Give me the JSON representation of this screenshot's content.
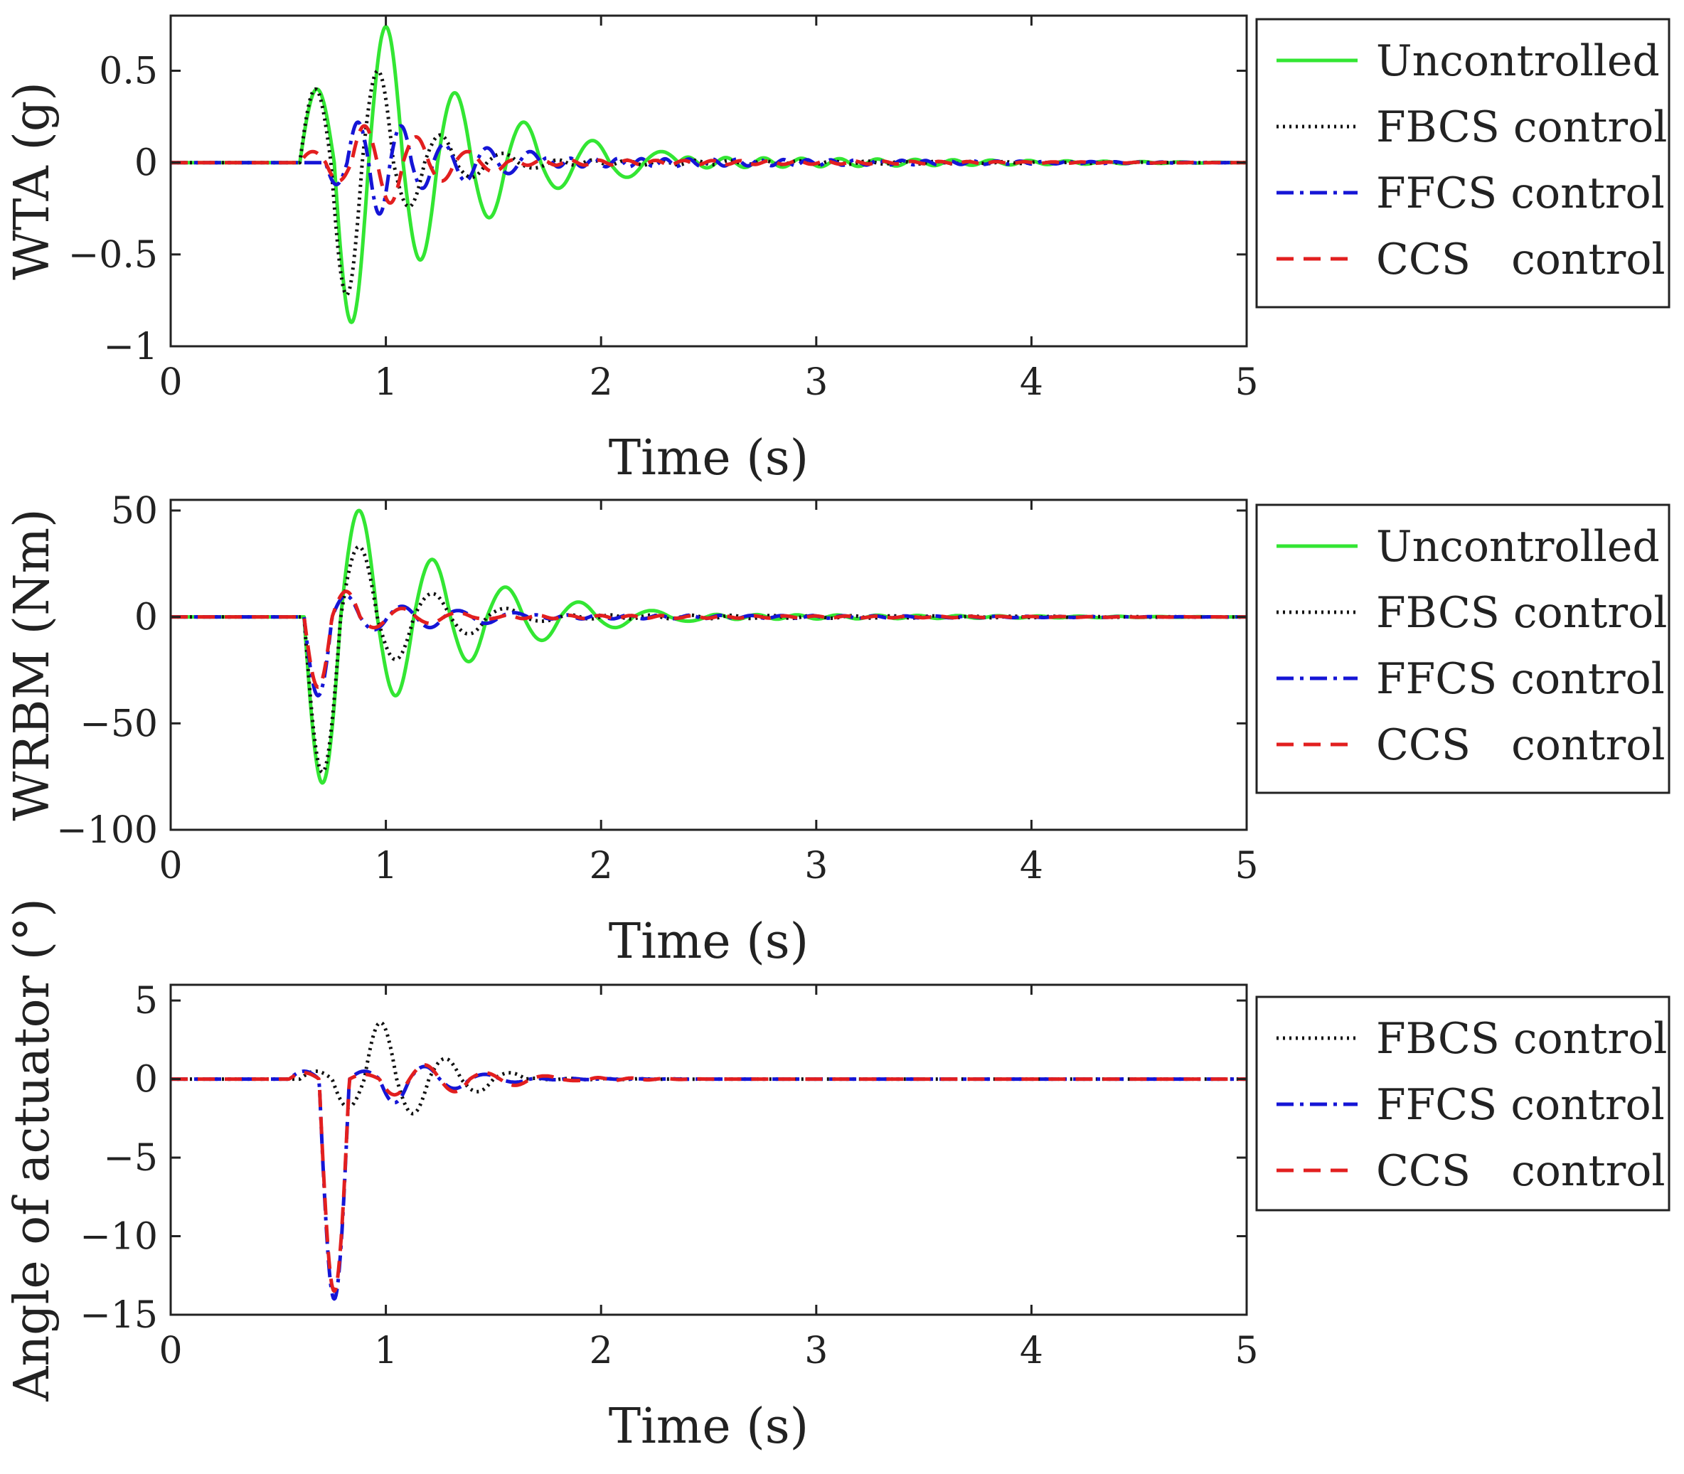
{
  "chart_data": [
    {
      "type": "line",
      "ylabel": "WTA (g)",
      "xlabel": "Time (s)",
      "xlim": [
        0,
        5
      ],
      "ylim": [
        -1,
        0.8
      ],
      "xticks": [
        0,
        1,
        2,
        3,
        4,
        5
      ],
      "yticks": [
        -1,
        -0.5,
        0,
        0.5
      ],
      "xtick_labels": [
        "0",
        "1",
        "2",
        "3",
        "4",
        "5"
      ],
      "ytick_labels": [
        "−1",
        "−0.5",
        "0",
        "0.5"
      ],
      "legend": [
        "Uncontrolled",
        "FBCS control",
        "FFCS control",
        "CCS   control"
      ],
      "legend_position": "outside-right",
      "series": [
        {
          "name": "Uncontrolled",
          "color": "#33e633",
          "style": "solid",
          "model": {
            "t0": 0.6,
            "amps": [
              0.4,
              -0.87,
              0.74,
              -0.53,
              0.38,
              -0.3,
              0.22,
              -0.14,
              0.12,
              -0.08,
              0.06
            ],
            "period": 0.32,
            "tail_amp": 0.03,
            "tail_end": 5
          }
        },
        {
          "name": "FBCS control",
          "color": "#111111",
          "style": "dotted",
          "model": {
            "t0": 0.6,
            "amps": [
              0.4,
              -0.72,
              0.5,
              -0.24,
              0.15,
              -0.08,
              0.05,
              -0.03
            ],
            "period": 0.29,
            "tail_amp": 0.015,
            "tail_end": 5
          }
        },
        {
          "name": "FFCS control",
          "color": "#1515d6",
          "style": "dashdot",
          "model": {
            "t0": 0.72,
            "amps": [
              -0.12,
              0.22,
              -0.28,
              0.2,
              -0.14,
              0.1,
              -0.1,
              0.08,
              -0.06,
              0.06
            ],
            "period": 0.2,
            "tail_amp": 0.025,
            "tail_end": 5
          }
        },
        {
          "name": "CCS   control",
          "color": "#e21f1f",
          "style": "dashed",
          "model": {
            "t0": 0.6,
            "amps": [
              0.06,
              -0.1,
              0.2,
              -0.22,
              0.14,
              -0.1,
              0.06,
              -0.05
            ],
            "period": 0.24,
            "tail_amp": 0.015,
            "tail_end": 5
          }
        }
      ]
    },
    {
      "type": "line",
      "ylabel": "WRBM (Nm)",
      "xlabel": "Time (s)",
      "xlim": [
        0,
        5
      ],
      "ylim": [
        -100,
        55
      ],
      "xticks": [
        0,
        1,
        2,
        3,
        4,
        5
      ],
      "yticks": [
        -100,
        -50,
        0,
        50
      ],
      "xtick_labels": [
        "0",
        "1",
        "2",
        "3",
        "4",
        "5"
      ],
      "ytick_labels": [
        "−100",
        "−50",
        "0",
        "50"
      ],
      "legend": [
        "Uncontrolled",
        "FBCS control",
        "FFCS control",
        "CCS   control"
      ],
      "legend_position": "outside-right",
      "series": [
        {
          "name": "Uncontrolled",
          "color": "#33e633",
          "style": "solid",
          "model": {
            "t0": 0.62,
            "amps": [
              -78,
              50,
              -37,
              27,
              -21,
              14,
              -11,
              7,
              -5,
              3,
              -2
            ],
            "period": 0.34,
            "tail_amp": 1.2,
            "tail_end": 5
          }
        },
        {
          "name": "FBCS control",
          "color": "#111111",
          "style": "dotted",
          "model": {
            "t0": 0.62,
            "amps": [
              -73,
              33,
              -20,
              11,
              -8,
              4,
              -2
            ],
            "period": 0.34,
            "tail_amp": 1.0,
            "tail_end": 5
          }
        },
        {
          "name": "FFCS control",
          "color": "#1515d6",
          "style": "dashdot",
          "model": {
            "t0": 0.62,
            "amps": [
              -37,
              10,
              -6,
              5,
              -5,
              3,
              -3,
              2
            ],
            "period": 0.26,
            "tail_amp": 1.0,
            "tail_end": 5
          }
        },
        {
          "name": "CCS   control",
          "color": "#e21f1f",
          "style": "dashed",
          "model": {
            "t0": 0.62,
            "amps": [
              -33,
              12,
              -5,
              4,
              -3,
              2,
              -1
            ],
            "period": 0.26,
            "tail_amp": 0.8,
            "tail_end": 5
          }
        }
      ]
    },
    {
      "type": "line",
      "ylabel": "Angle of actuator (°)",
      "xlabel": "Time (s)",
      "xlim": [
        0,
        5
      ],
      "ylim": [
        -15,
        6
      ],
      "xticks": [
        0,
        1,
        2,
        3,
        4,
        5
      ],
      "yticks": [
        -15,
        -10,
        -5,
        0,
        5
      ],
      "xtick_labels": [
        "0",
        "1",
        "2",
        "3",
        "4",
        "5"
      ],
      "ytick_labels": [
        "−15",
        "−10",
        "−5",
        "0",
        "5"
      ],
      "legend": [
        "FBCS control",
        "FFCS control",
        "CCS   control"
      ],
      "legend_position": "outside-right",
      "series": [
        {
          "name": "FBCS control",
          "color": "#111111",
          "style": "dotted",
          "model": {
            "t0": 0.6,
            "amps": [
              0.5,
              -1.8,
              3.6,
              -2.2,
              1.3,
              -0.8,
              0.4
            ],
            "period": 0.3,
            "tail_amp": 0.05,
            "tail_end": 2.5
          }
        },
        {
          "name": "FFCS control",
          "color": "#1515d6",
          "style": "dashdot",
          "model": {
            "t0": 0.55,
            "amps": [
              0.5,
              -14,
              0.5,
              -1.5,
              0.8,
              -0.6,
              0.3,
              -0.2
            ],
            "period": 0.28,
            "tail_amp": 0.05,
            "tail_end": 2.5
          }
        },
        {
          "name": "CCS   control",
          "color": "#e21f1f",
          "style": "dashed",
          "model": {
            "t0": 0.55,
            "amps": [
              0.4,
              -13.5,
              0.3,
              -1.0,
              0.9,
              -0.8,
              0.4,
              -0.4,
              0.2,
              -0.1
            ],
            "period": 0.28,
            "tail_amp": 0.1,
            "tail_end": 2.5
          }
        }
      ]
    }
  ]
}
